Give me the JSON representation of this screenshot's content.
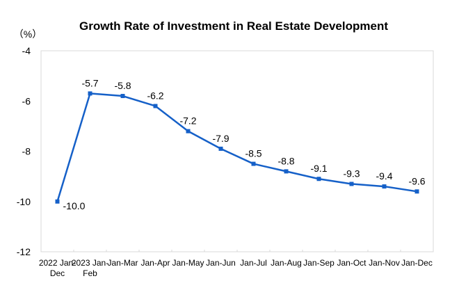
{
  "chart_data": {
    "type": "line",
    "title": "Growth Rate of Investment in Real Estate Development",
    "ylabel": "（%）",
    "xlabel": "",
    "ylim": [
      -12,
      -4
    ],
    "yticks": [
      -4,
      -6,
      -8,
      -10,
      -12
    ],
    "categories": [
      [
        "2022 Jan-",
        "Dec"
      ],
      [
        "2023 Jan-",
        "Feb"
      ],
      [
        "Jan-Mar"
      ],
      [
        "Jan-Apr"
      ],
      [
        "Jan-May"
      ],
      [
        "Jan-Jun"
      ],
      [
        "Jan-Jul"
      ],
      [
        "Jan-Aug"
      ],
      [
        "Jan-Sep"
      ],
      [
        "Jan-Oct"
      ],
      [
        "Jan-Nov"
      ],
      [
        "Jan-Dec"
      ]
    ],
    "series": [
      {
        "name": "Growth Rate of Investment in Real Estate Development",
        "color": "#1560c8",
        "values": [
          -10.0,
          -5.7,
          -5.8,
          -6.2,
          -7.2,
          -7.9,
          -8.5,
          -8.8,
          -9.1,
          -9.3,
          -9.4,
          -9.6
        ],
        "labels": [
          "-10.0",
          "-5.7",
          "-5.8",
          "-6.2",
          "-7.2",
          "-7.9",
          "-8.5",
          "-8.8",
          "-9.1",
          "-9.3",
          "-9.4",
          "-9.6"
        ]
      }
    ],
    "grid": false,
    "legend": "none"
  }
}
